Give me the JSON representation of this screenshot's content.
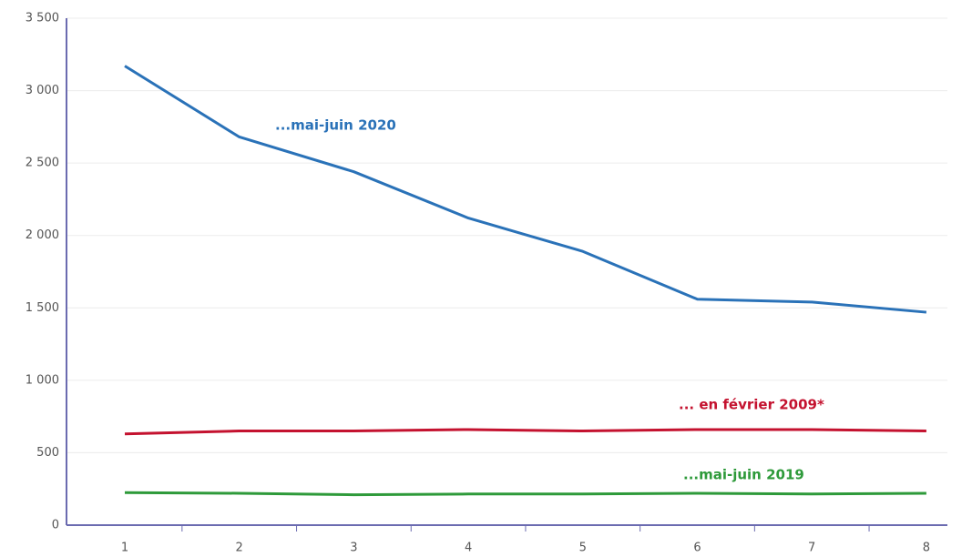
{
  "chart_data": {
    "type": "line",
    "categories": [
      "1",
      "2",
      "3",
      "4",
      "5",
      "6",
      "7",
      "8"
    ],
    "series": [
      {
        "name": "...mai-juin 2020",
        "color": "#2a72b8",
        "values": [
          3170,
          2680,
          2440,
          2120,
          1890,
          1560,
          1540,
          1470
        ]
      },
      {
        "name": "... en février 2009*",
        "color": "#c4122f",
        "values": [
          630,
          650,
          650,
          660,
          650,
          660,
          660,
          650
        ]
      },
      {
        "name": "...mai-juin 2019",
        "color": "#2e9a3a",
        "values": [
          225,
          220,
          210,
          215,
          215,
          220,
          215,
          220
        ]
      }
    ],
    "ylim": [
      0,
      3500
    ],
    "yticks": [
      0,
      500,
      {
        "value": 1000,
        "label": "1 000"
      },
      {
        "value": 1500,
        "label": "1 500"
      },
      {
        "value": 2000,
        "label": "2 000"
      },
      {
        "value": 2500,
        "label": "2 500"
      },
      {
        "value": 3000,
        "label": "3 000"
      },
      {
        "value": 3500,
        "label": "3 500"
      }
    ],
    "grid": true
  }
}
